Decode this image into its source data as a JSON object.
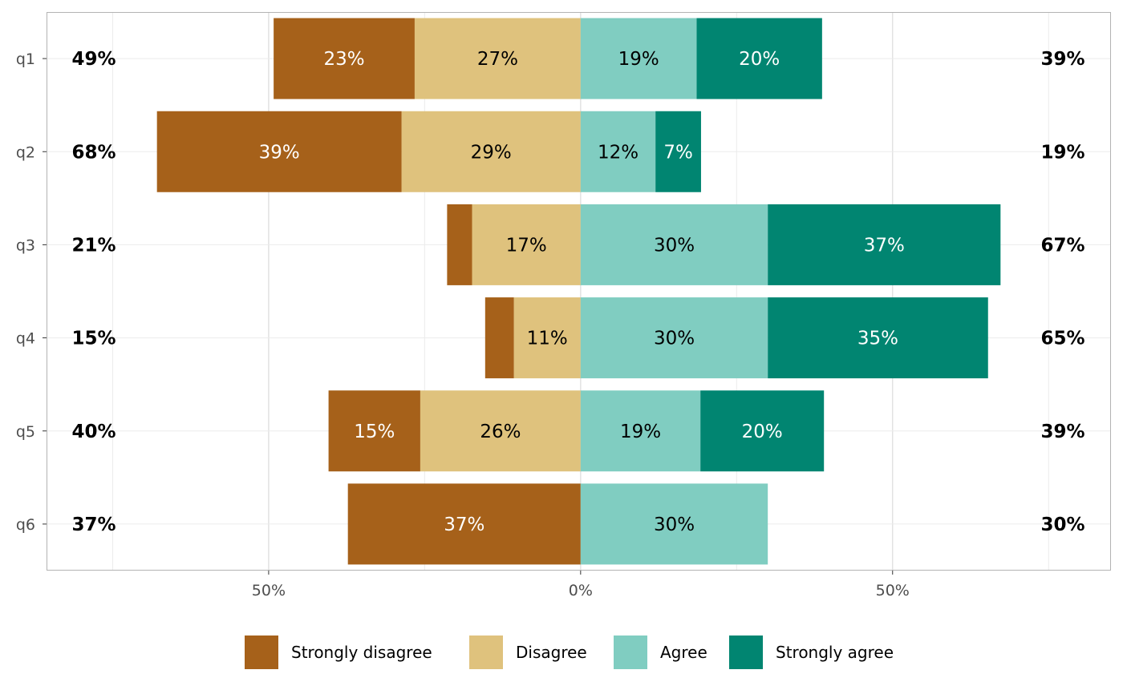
{
  "chart_data": {
    "type": "bar",
    "orientation": "horizontal-diverging",
    "categories": [
      "q1",
      "q2",
      "q3",
      "q4",
      "q5",
      "q6"
    ],
    "series": [
      {
        "name": "Strongly disagree",
        "color": "#A6611A",
        "side": "negative",
        "values": [
          22.6,
          39.2,
          4.0,
          4.6,
          14.7,
          37.3
        ],
        "labels": [
          "23%",
          "39%",
          null,
          null,
          "15%",
          "37%"
        ],
        "label_color": "#ffffff"
      },
      {
        "name": "Disagree",
        "color": "#DFC27D",
        "side": "negative",
        "values": [
          26.6,
          28.7,
          17.4,
          10.7,
          25.7,
          0
        ],
        "labels": [
          "27%",
          "29%",
          "17%",
          "11%",
          "26%",
          null
        ],
        "label_color": "#000000"
      },
      {
        "name": "Agree",
        "color": "#80CDC1",
        "side": "positive",
        "values": [
          18.6,
          12.0,
          30.0,
          30.0,
          19.2,
          30.0
        ],
        "labels": [
          "19%",
          "12%",
          "30%",
          "30%",
          "19%",
          "30%"
        ],
        "label_color": "#000000"
      },
      {
        "name": "Strongly agree",
        "color": "#018571",
        "side": "positive",
        "values": [
          20.1,
          7.3,
          37.3,
          35.3,
          19.8,
          0
        ],
        "labels": [
          "20%",
          "7%",
          "37%",
          "35%",
          "20%",
          null
        ],
        "label_color": "#ffffff"
      }
    ],
    "left_totals": [
      "49%",
      "68%",
      "21%",
      "15%",
      "40%",
      "37%"
    ],
    "right_totals": [
      "39%",
      "19%",
      "67%",
      "65%",
      "39%",
      "30%"
    ],
    "xlim": [
      -85.6,
      85.0
    ],
    "x_ticks": [
      {
        "value": -50,
        "label": "50%"
      },
      {
        "value": 0,
        "label": "0%"
      },
      {
        "value": 50,
        "label": "50%"
      }
    ],
    "x_minor_ticks": [
      -75,
      -25,
      25,
      75
    ],
    "title": "",
    "xlabel": "",
    "ylabel": "",
    "grid": true,
    "legend_position": "bottom"
  }
}
